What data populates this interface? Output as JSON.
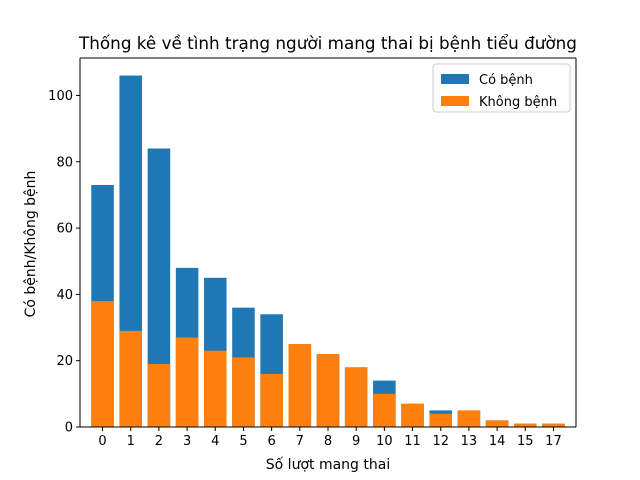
{
  "chart_data": {
    "type": "bar",
    "title": "Thống kê về tình trạng người mang thai bị bệnh tiểu đường",
    "xlabel": "Số lượt mang thai",
    "ylabel": "Có bệnh/Không bệnh",
    "categories": [
      "0",
      "1",
      "2",
      "3",
      "4",
      "5",
      "6",
      "7",
      "8",
      "9",
      "10",
      "11",
      "12",
      "13",
      "14",
      "15",
      "17"
    ],
    "series": [
      {
        "name": "Có bệnh",
        "color": "#1f77b4",
        "values": [
          73,
          106,
          84,
          48,
          45,
          36,
          34,
          25,
          22,
          18,
          14,
          7,
          5,
          5,
          2,
          1,
          1
        ]
      },
      {
        "name": "Không bệnh",
        "color": "#ff7f0e",
        "values": [
          38,
          29,
          19,
          27,
          23,
          21,
          16,
          25,
          22,
          18,
          10,
          7,
          4,
          5,
          2,
          1,
          1
        ]
      }
    ],
    "ylim": [
      0,
      111.3
    ],
    "yticks": [
      0,
      20,
      40,
      60,
      80,
      100
    ],
    "legend_position": "top-right",
    "grid": false
  }
}
